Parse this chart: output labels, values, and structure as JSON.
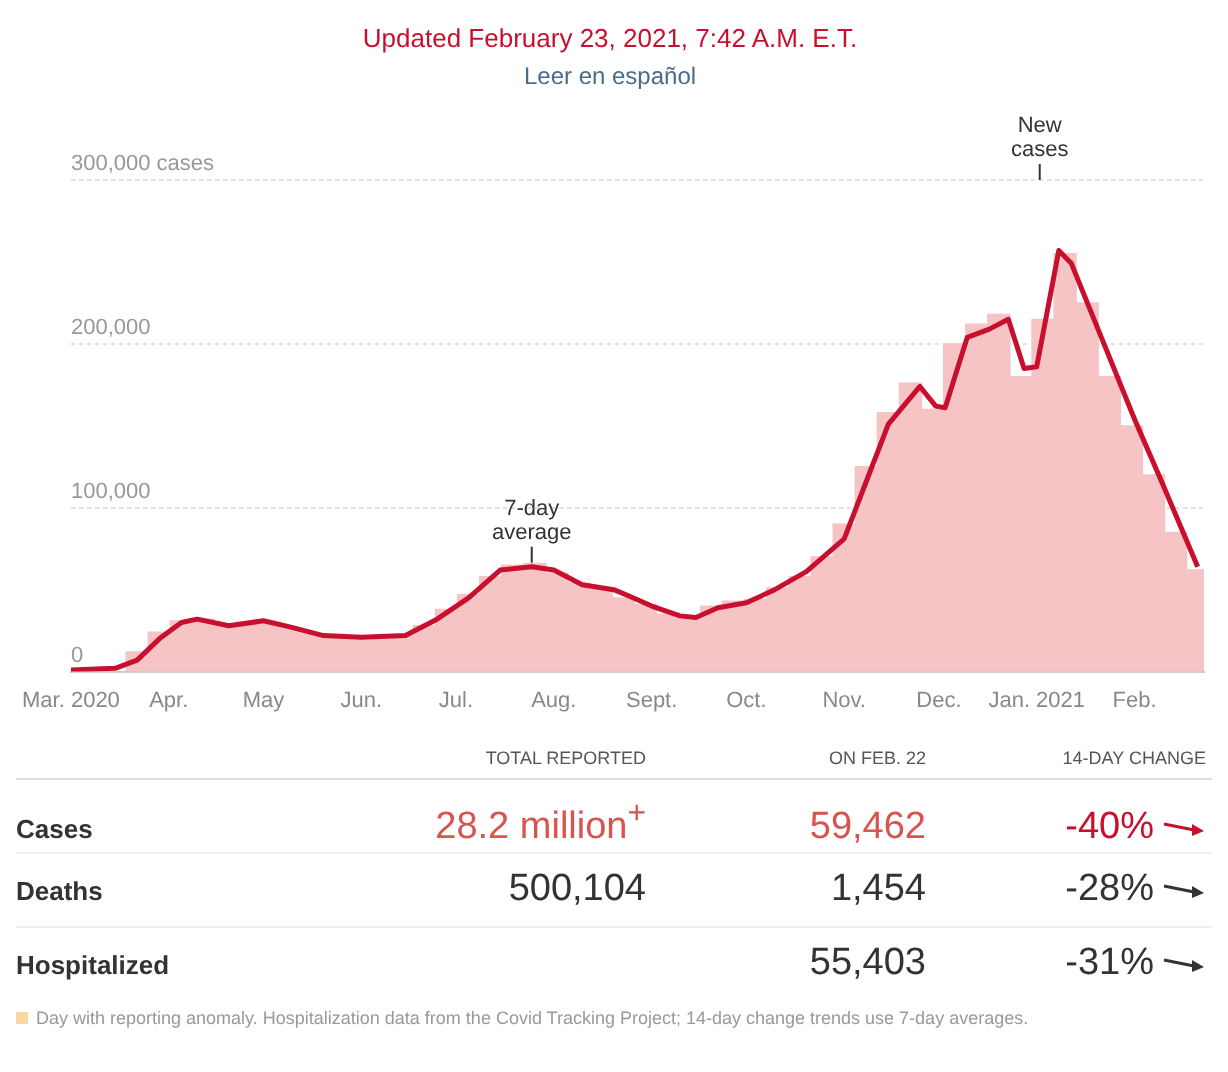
{
  "chart_data": [
    {
      "type": "bar",
      "title": "Updated February 23, 2021, 7:42 A.M. E.T.",
      "subtitle": "Leer en español",
      "xlim": [
        "2020-03-01",
        "2021-02-23"
      ],
      "xticks": [
        {
          "value": "2020-03-01",
          "label": "Mar. 2020"
        },
        {
          "value": "2020-04-01",
          "label": "Apr."
        },
        {
          "value": "2020-05-01",
          "label": "May"
        },
        {
          "value": "2020-06-01",
          "label": "Jun."
        },
        {
          "value": "2020-07-01",
          "label": "Jul."
        },
        {
          "value": "2020-08-01",
          "label": "Aug."
        },
        {
          "value": "2020-09-01",
          "label": "Sept."
        },
        {
          "value": "2020-10-01",
          "label": "Oct."
        },
        {
          "value": "2020-11-01",
          "label": "Nov."
        },
        {
          "value": "2020-12-01",
          "label": "Dec."
        },
        {
          "value": "2021-01-01",
          "label": "Jan. 2021"
        },
        {
          "value": "2021-02-01",
          "label": "Feb."
        }
      ],
      "ylim": [
        0,
        300000
      ],
      "yticks": [
        0,
        {
          "value": 100000,
          "label": "100,000"
        },
        {
          "value": 200000,
          "label": "200,000"
        },
        {
          "value": 300000,
          "label": "300,000 cases"
        }
      ],
      "grid": "y",
      "legend": false,
      "series": [
        {
          "type": "bar",
          "color": "#f6c4c4",
          "x": [
            "2020-03-22",
            "2020-03-29",
            "2020-04-05",
            "2020-04-12",
            "2020-04-19",
            "2020-04-26",
            "2020-05-03",
            "2020-05-10",
            "2020-05-17",
            "2020-05-24",
            "2020-05-31",
            "2020-06-07",
            "2020-06-14",
            "2020-06-21",
            "2020-06-28",
            "2020-07-05",
            "2020-07-12",
            "2020-07-19",
            "2020-07-26",
            "2020-08-02",
            "2020-08-09",
            "2020-08-16",
            "2020-08-23",
            "2020-08-30",
            "2020-09-06",
            "2020-09-13",
            "2020-09-20",
            "2020-09-27",
            "2020-10-04",
            "2020-10-11",
            "2020-10-18",
            "2020-10-25",
            "2020-11-01",
            "2020-11-08",
            "2020-11-15",
            "2020-11-22",
            "2020-11-29",
            "2020-12-06",
            "2020-12-13",
            "2020-12-20",
            "2020-12-27",
            "2021-01-03",
            "2021-01-10",
            "2021-01-17",
            "2021-01-24",
            "2021-01-31",
            "2021-02-07",
            "2021-02-14",
            "2021-02-21"
          ],
          "values": [
            12000,
            24000,
            31000,
            32000,
            29000,
            30000,
            30000,
            26000,
            23000,
            21000,
            21000,
            21000,
            22000,
            28000,
            38000,
            47000,
            58000,
            65000,
            66000,
            60000,
            54000,
            50000,
            45000,
            41000,
            35000,
            34000,
            40000,
            43000,
            44000,
            51000,
            58000,
            70000,
            90000,
            125000,
            158000,
            176000,
            160000,
            200000,
            212000,
            218000,
            180000,
            215000,
            255000,
            225000,
            180000,
            150000,
            120000,
            85000,
            62000
          ]
        },
        {
          "type": "line",
          "color": "#c8102e",
          "x": [
            "2020-03-01",
            "2020-03-15",
            "2020-03-22",
            "2020-03-29",
            "2020-04-05",
            "2020-04-10",
            "2020-04-20",
            "2020-05-01",
            "2020-05-10",
            "2020-05-20",
            "2020-06-01",
            "2020-06-15",
            "2020-06-25",
            "2020-07-05",
            "2020-07-15",
            "2020-07-25",
            "2020-08-01",
            "2020-08-10",
            "2020-08-20",
            "2020-08-25",
            "2020-09-01",
            "2020-09-10",
            "2020-09-15",
            "2020-09-22",
            "2020-10-01",
            "2020-10-10",
            "2020-10-20",
            "2020-11-01",
            "2020-11-08",
            "2020-11-15",
            "2020-11-25",
            "2020-11-30",
            "2020-12-03",
            "2020-12-10",
            "2020-12-17",
            "2020-12-23",
            "2020-12-28",
            "2021-01-01",
            "2021-01-08",
            "2021-01-12",
            "2021-01-20",
            "2021-02-01",
            "2021-02-10",
            "2021-02-21"
          ],
          "values": [
            1000,
            2000,
            7000,
            20000,
            30000,
            32000,
            28000,
            31000,
            27000,
            22000,
            21000,
            22000,
            32000,
            45000,
            62000,
            64000,
            62000,
            53000,
            50000,
            46000,
            40000,
            34000,
            33000,
            39000,
            42000,
            50000,
            61000,
            81000,
            116000,
            151000,
            174000,
            162000,
            161000,
            204000,
            209000,
            215000,
            185000,
            186000,
            257000,
            249000,
            211000,
            154000,
            114000,
            64000
          ]
        }
      ],
      "annotations": [
        {
          "text": "7-day average",
          "x": "2020-07-25",
          "y": 64000
        },
        "New cases"
      ]
    },
    {
      "type": "other",
      "categories": [
        "TOTAL REPORTED",
        "ON FEB. 22",
        "14-DAY CHANGE"
      ],
      "y_categories": [
        "Cases",
        "Deaths",
        "Hospitalized"
      ],
      "cell_labels": [
        [
          "28.2 million$^{+}$",
          "59,462",
          "-40%"
        ],
        [
          "500,104",
          "1,454",
          "-28%"
        ],
        [
          null,
          "55,403",
          "-31%"
        ]
      ],
      "colors": [
        "#c8102e",
        "#333333",
        "#333333"
      ],
      "annotations": [
        "Day with reporting anomaly. Hospitalization data from the Covid Tracking Project; 14-day change trends use 7-day averages."
      ]
    }
  ]
}
